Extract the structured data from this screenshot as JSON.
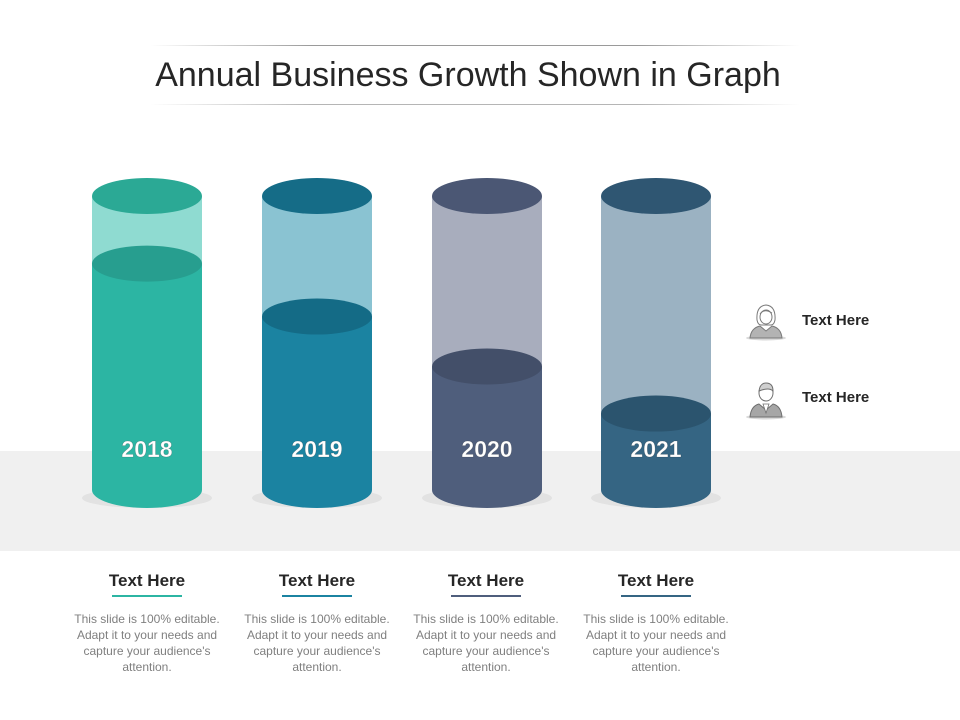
{
  "title": "Annual Business Growth Shown in Graph",
  "chart_data": {
    "type": "bar",
    "categories": [
      "2018",
      "2019",
      "2020",
      "2021"
    ],
    "values": [
      77,
      59,
      42,
      26
    ],
    "ylim": [
      0,
      100
    ],
    "grid": false
  },
  "colors": {
    "fill_body": [
      "#2cb5a3",
      "#1b83a1",
      "#4f5e7c",
      "#356583"
    ],
    "fill_top": [
      "#279e8f",
      "#146b86",
      "#434f69",
      "#2b546e"
    ],
    "empty_body": [
      "#8fdbd1",
      "#8ac3d2",
      "#a8adbd",
      "#9bb2c2"
    ],
    "empty_top": [
      "#2ba995",
      "#156c87",
      "#4b5774",
      "#2f5672"
    ],
    "underline": [
      "#2cb5a3",
      "#1b83a1",
      "#4f5e7c",
      "#356583"
    ],
    "floor": "#f0f0f0"
  },
  "legend": [
    {
      "label": "Text Here",
      "icon": "female-avatar-icon"
    },
    {
      "label": "Text Here",
      "icon": "male-avatar-icon"
    }
  ],
  "cards": [
    {
      "heading": "Text Here",
      "body": "This slide is 100% editable. Adapt it to your needs and capture your audience's attention."
    },
    {
      "heading": "Text Here",
      "body": "This slide is 100% editable. Adapt it to your needs and capture your audience's attention."
    },
    {
      "heading": "Text Here",
      "body": "This slide is 100% editable. Adapt it to your needs and capture your audience's attention."
    },
    {
      "heading": "Text Here",
      "body": "This slide is 100% editable. Adapt it to your needs and capture your audience's attention."
    }
  ]
}
